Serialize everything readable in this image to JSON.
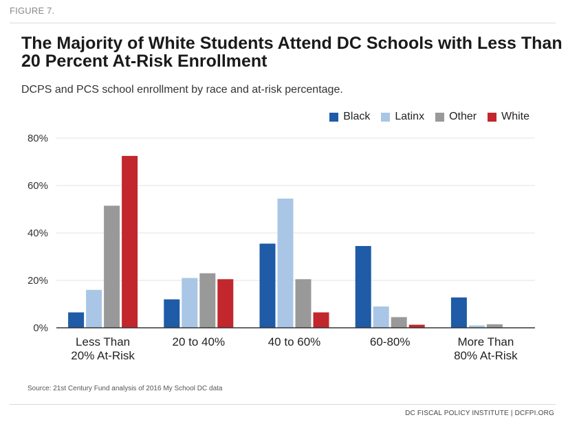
{
  "figure_label": "FIGURE 7.",
  "chart_data": {
    "type": "bar",
    "title": "The Majority of White Students Attend DC Schools with Less Than 20 Percent At-Risk Enrollment",
    "subtitle": "DCPS and PCS school enrollment by race and at-risk percentage.",
    "xlabel": "",
    "ylabel": "",
    "ylim": [
      0,
      80
    ],
    "yticks": [
      "0%",
      "20%",
      "40%",
      "60%",
      "80%"
    ],
    "ytick_values": [
      0,
      20,
      40,
      60,
      80
    ],
    "grid": true,
    "legend_position": "top-right",
    "categories": [
      [
        "Less Than",
        "20% At-Risk"
      ],
      [
        "20 to 40%"
      ],
      [
        "40 to 60%"
      ],
      [
        "60-80%"
      ],
      [
        "More Than",
        "80% At-Risk"
      ]
    ],
    "series": [
      {
        "name": "Black",
        "color": "#1f5ba6",
        "values": [
          6.5,
          12,
          35.5,
          34.5,
          12.8
        ]
      },
      {
        "name": "Latinx",
        "color": "#a9c6e6",
        "values": [
          16,
          21,
          54.5,
          9,
          1
        ]
      },
      {
        "name": "Other",
        "color": "#999999",
        "values": [
          51.5,
          23,
          20.5,
          4.5,
          1.5
        ]
      },
      {
        "name": "White",
        "color": "#c1272d",
        "values": [
          72.5,
          20.5,
          6.5,
          1.3,
          0
        ]
      }
    ]
  },
  "source": "Source: 21st Century Fund analysis of 2016 My School DC data",
  "footer": "DC FISCAL POLICY INSTITUTE | DCFPI.ORG"
}
